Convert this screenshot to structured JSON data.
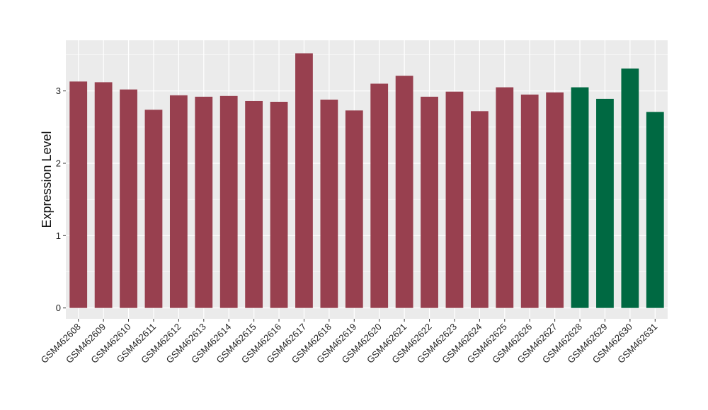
{
  "chart_data": {
    "type": "bar",
    "title": "",
    "xlabel": "",
    "ylabel": "Expression Level",
    "ylim": [
      -0.15,
      3.7
    ],
    "yticks": [
      0,
      1,
      2,
      3
    ],
    "grid": true,
    "legend": "none",
    "categories": [
      "GSM462608",
      "GSM462609",
      "GSM462610",
      "GSM462611",
      "GSM462612",
      "GSM462613",
      "GSM462614",
      "GSM462615",
      "GSM462616",
      "GSM462617",
      "GSM462618",
      "GSM462619",
      "GSM462620",
      "GSM462621",
      "GSM462622",
      "GSM462623",
      "GSM462624",
      "GSM462625",
      "GSM462626",
      "GSM462627",
      "GSM462628",
      "GSM462629",
      "GSM462630",
      "GSM462631"
    ],
    "values": [
      3.13,
      3.12,
      3.02,
      2.74,
      2.94,
      2.92,
      2.93,
      2.86,
      2.85,
      3.52,
      2.88,
      2.73,
      3.1,
      3.21,
      2.92,
      2.99,
      2.72,
      3.05,
      2.95,
      2.98,
      3.05,
      2.89,
      3.31,
      2.71
    ],
    "groups": [
      "g1",
      "g1",
      "g1",
      "g1",
      "g1",
      "g1",
      "g1",
      "g1",
      "g1",
      "g1",
      "g1",
      "g1",
      "g1",
      "g1",
      "g1",
      "g1",
      "g1",
      "g1",
      "g1",
      "g1",
      "g2",
      "g2",
      "g2",
      "g2"
    ],
    "colors": {
      "g1": "#98404F",
      "g2": "#006942",
      "panel": "#EBEBEB",
      "grid": "#FFFFFF"
    }
  }
}
